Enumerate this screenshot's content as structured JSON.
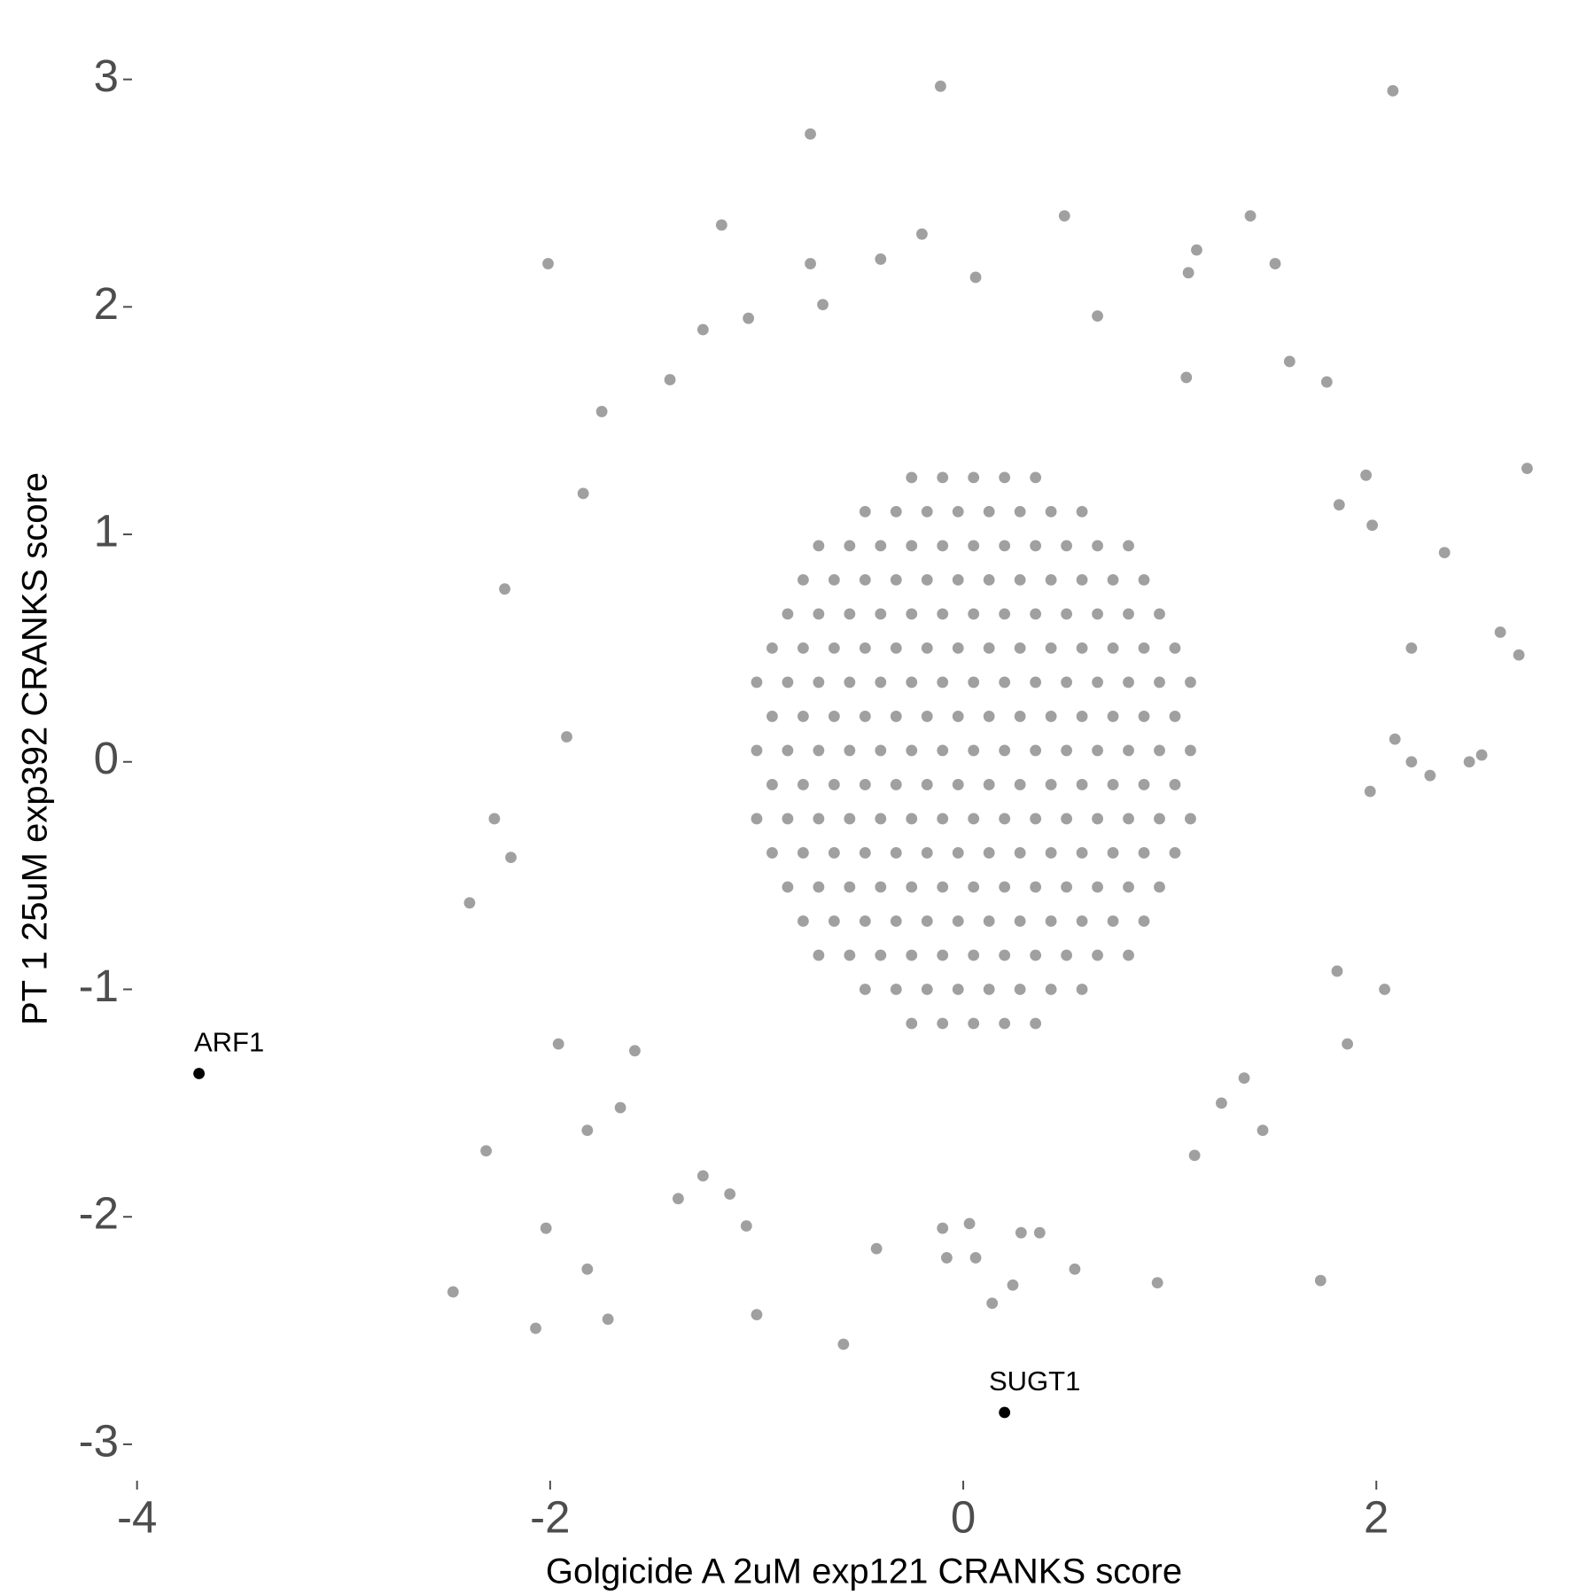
{
  "chart_data": {
    "type": "scatter",
    "x_label": "Golgicide A 2uM exp121 CRANKS score",
    "y_label": "PT 1 25uM exp392 CRANKS score",
    "xlim": [
      -4.02,
      3.05
    ],
    "ylim": [
      -3.16,
      3.24
    ],
    "xticks": [
      -4,
      -2,
      0,
      2
    ],
    "yticks": [
      -3,
      -2,
      -1,
      0,
      1,
      2,
      3
    ],
    "grid": false,
    "series": [
      {
        "color": "#a0a0a0",
        "x": [
          -0.25,
          -0.1,
          0.05,
          0.2,
          0.35,
          -0.475,
          -0.325,
          -0.175,
          -0.025,
          0.125,
          0.275,
          0.425,
          0.575,
          -0.7,
          -0.55,
          -0.4,
          -0.25,
          -0.1,
          0.05,
          0.2,
          0.35,
          0.5,
          0.65,
          0.8,
          -0.775,
          -0.625,
          -0.475,
          -0.325,
          -0.175,
          -0.025,
          0.125,
          0.275,
          0.425,
          0.575,
          0.725,
          0.875,
          -0.85,
          -0.7,
          -0.55,
          -0.4,
          -0.25,
          -0.1,
          0.05,
          0.2,
          0.35,
          0.5,
          0.65,
          0.8,
          0.95,
          -0.925,
          -0.775,
          -0.625,
          -0.475,
          -0.325,
          -0.175,
          -0.025,
          0.125,
          0.275,
          0.425,
          0.575,
          0.725,
          0.875,
          1.025,
          -1.0,
          -0.85,
          -0.7,
          -0.55,
          -0.4,
          -0.25,
          -0.1,
          0.05,
          0.2,
          0.35,
          0.5,
          0.65,
          0.8,
          0.95,
          1.1,
          -0.925,
          -0.775,
          -0.625,
          -0.475,
          -0.325,
          -0.175,
          -0.025,
          0.125,
          0.275,
          0.425,
          0.575,
          0.725,
          0.875,
          1.025,
          -1.0,
          -0.85,
          -0.7,
          -0.55,
          -0.4,
          -0.25,
          -0.1,
          0.05,
          0.2,
          0.35,
          0.5,
          0.65,
          0.8,
          0.95,
          1.1,
          -0.925,
          -0.775,
          -0.625,
          -0.475,
          -0.325,
          -0.175,
          -0.025,
          0.125,
          0.275,
          0.425,
          0.575,
          0.725,
          0.875,
          1.025,
          -1.0,
          -0.85,
          -0.7,
          -0.55,
          -0.4,
          -0.25,
          -0.1,
          0.05,
          0.2,
          0.35,
          0.5,
          0.65,
          0.8,
          0.95,
          1.1,
          -0.925,
          -0.775,
          -0.625,
          -0.475,
          -0.325,
          -0.175,
          -0.025,
          0.125,
          0.275,
          0.425,
          0.575,
          0.725,
          0.875,
          1.025,
          -0.85,
          -0.7,
          -0.55,
          -0.4,
          -0.25,
          -0.1,
          0.05,
          0.2,
          0.35,
          0.5,
          0.65,
          0.8,
          0.95,
          -0.775,
          -0.625,
          -0.475,
          -0.325,
          -0.175,
          -0.025,
          0.125,
          0.275,
          0.425,
          0.575,
          0.725,
          0.875,
          -0.7,
          -0.55,
          -0.4,
          -0.25,
          -0.1,
          0.05,
          0.2,
          0.35,
          0.5,
          0.65,
          0.8,
          -0.475,
          -0.325,
          -0.175,
          -0.025,
          0.125,
          0.275,
          0.425,
          0.575,
          -0.25,
          -0.1,
          0.05,
          0.2,
          0.35,
          -0.11,
          2.08,
          -0.74,
          -1.17,
          0.49,
          1.39,
          -0.2,
          -2.01,
          -0.4,
          1.13,
          1.51,
          -0.74,
          2.73,
          2.33,
          1.98,
          2.6,
          2.69,
          2.51,
          2.45,
          2.26,
          2.17,
          2.04,
          1.86,
          1.73,
          1.45,
          -2.22,
          -1.75,
          -1.84,
          -1.92,
          -2.27,
          -2.39,
          -2.19,
          -2.31,
          -2.47,
          -2.07,
          -2.02,
          -1.82,
          -1.72,
          -1.82,
          -1.0,
          -0.58,
          -0.42,
          0.14,
          0.24,
          0.54,
          0.94,
          -0.1,
          0.03,
          -0.08,
          0.06,
          0.28,
          0.37,
          -1.05,
          -1.38,
          -1.26,
          -1.13,
          -1.96,
          -1.66,
          -1.59,
          1.36,
          1.25,
          1.12,
          1.81,
          1.97,
          2.09,
          2.17,
          1.95,
          1.82,
          1.76,
          1.58,
          1.09,
          1.08,
          -1.26,
          -1.42,
          -1.04,
          -0.68,
          0.06,
          0.65
        ],
        "y": [
          1.25,
          1.25,
          1.25,
          1.25,
          1.25,
          1.1,
          1.1,
          1.1,
          1.1,
          1.1,
          1.1,
          1.1,
          1.1,
          0.95,
          0.95,
          0.95,
          0.95,
          0.95,
          0.95,
          0.95,
          0.95,
          0.95,
          0.95,
          0.95,
          0.8,
          0.8,
          0.8,
          0.8,
          0.8,
          0.8,
          0.8,
          0.8,
          0.8,
          0.8,
          0.8,
          0.8,
          0.65,
          0.65,
          0.65,
          0.65,
          0.65,
          0.65,
          0.65,
          0.65,
          0.65,
          0.65,
          0.65,
          0.65,
          0.65,
          0.5,
          0.5,
          0.5,
          0.5,
          0.5,
          0.5,
          0.5,
          0.5,
          0.5,
          0.5,
          0.5,
          0.5,
          0.5,
          0.5,
          0.35,
          0.35,
          0.35,
          0.35,
          0.35,
          0.35,
          0.35,
          0.35,
          0.35,
          0.35,
          0.35,
          0.35,
          0.35,
          0.35,
          0.35,
          0.2,
          0.2,
          0.2,
          0.2,
          0.2,
          0.2,
          0.2,
          0.2,
          0.2,
          0.2,
          0.2,
          0.2,
          0.2,
          0.2,
          0.05,
          0.05,
          0.05,
          0.05,
          0.05,
          0.05,
          0.05,
          0.05,
          0.05,
          0.05,
          0.05,
          0.05,
          0.05,
          0.05,
          0.05,
          -0.1,
          -0.1,
          -0.1,
          -0.1,
          -0.1,
          -0.1,
          -0.1,
          -0.1,
          -0.1,
          -0.1,
          -0.1,
          -0.1,
          -0.1,
          -0.1,
          -0.25,
          -0.25,
          -0.25,
          -0.25,
          -0.25,
          -0.25,
          -0.25,
          -0.25,
          -0.25,
          -0.25,
          -0.25,
          -0.25,
          -0.25,
          -0.25,
          -0.25,
          -0.4,
          -0.4,
          -0.4,
          -0.4,
          -0.4,
          -0.4,
          -0.4,
          -0.4,
          -0.4,
          -0.4,
          -0.4,
          -0.4,
          -0.4,
          -0.4,
          -0.55,
          -0.55,
          -0.55,
          -0.55,
          -0.55,
          -0.55,
          -0.55,
          -0.55,
          -0.55,
          -0.55,
          -0.55,
          -0.55,
          -0.55,
          -0.7,
          -0.7,
          -0.7,
          -0.7,
          -0.7,
          -0.7,
          -0.7,
          -0.7,
          -0.7,
          -0.7,
          -0.7,
          -0.7,
          -0.85,
          -0.85,
          -0.85,
          -0.85,
          -0.85,
          -0.85,
          -0.85,
          -0.85,
          -0.85,
          -0.85,
          -0.85,
          -1.0,
          -1.0,
          -1.0,
          -1.0,
          -1.0,
          -1.0,
          -1.0,
          -1.0,
          -1.15,
          -1.15,
          -1.15,
          -1.15,
          -1.15,
          2.97,
          2.95,
          2.76,
          2.36,
          2.4,
          2.4,
          2.32,
          2.19,
          2.21,
          2.25,
          2.19,
          2.19,
          1.29,
          0.92,
          1.04,
          0.57,
          0.47,
          0.03,
          0.0,
          -0.06,
          0.0,
          -1.0,
          -1.24,
          -2.28,
          -1.62,
          0.76,
          1.54,
          1.18,
          0.11,
          -0.25,
          -0.62,
          -0.42,
          -1.71,
          -2.33,
          -2.49,
          -2.05,
          -2.23,
          -2.45,
          -1.62,
          -2.43,
          -2.56,
          -2.14,
          -2.38,
          -2.3,
          -2.23,
          -2.29,
          -2.05,
          -2.03,
          -2.18,
          -2.18,
          -2.07,
          -2.07,
          -2.04,
          -1.92,
          -1.82,
          -1.9,
          -1.24,
          -1.52,
          -1.27,
          -1.39,
          -1.5,
          -1.73,
          -0.92,
          -0.13,
          0.1,
          0.5,
          1.26,
          1.13,
          1.67,
          1.76,
          2.15,
          1.69,
          1.9,
          1.68,
          1.95,
          2.01,
          2.13,
          1.96
        ]
      },
      {
        "color": "#000000",
        "x": [
          -3.7,
          0.2
        ],
        "y": [
          -1.37,
          -2.86
        ],
        "labels": [
          "ARF1",
          "SUGT1"
        ]
      }
    ]
  }
}
